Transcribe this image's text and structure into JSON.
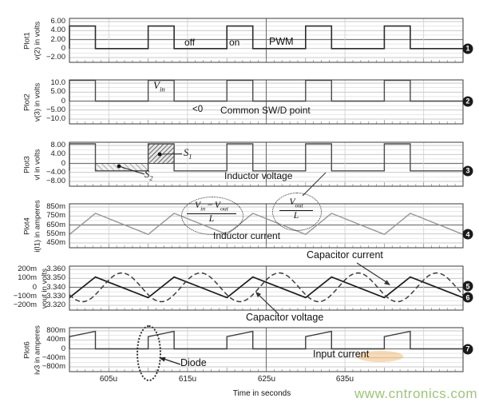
{
  "axis": {
    "title": "Time in seconds",
    "xtick_labels": [
      "605u",
      "615u",
      "625u",
      "635u"
    ]
  },
  "plots": [
    {
      "name": "Plot1",
      "signal": "v(2) in volts",
      "yticks": [
        "6.00",
        "4.00",
        "2.00",
        "0",
        "−2.00"
      ]
    },
    {
      "name": "Plot2",
      "signal": "v(3) in volts",
      "yticks": [
        "10.0",
        "5.00",
        "0",
        "−5.00",
        "−10.0"
      ]
    },
    {
      "name": "Plot3",
      "signal": "vl in volts",
      "yticks": [
        "8.00",
        "4.00",
        "0",
        "−4.00",
        "−8.00"
      ]
    },
    {
      "name": "Plot4",
      "signal": "i(l1) in amperes",
      "yticks": [
        "850m",
        "750m",
        "650m",
        "550m",
        "450m"
      ]
    },
    {
      "name": "",
      "signal": "vout in volts",
      "yticks": [
        "200m",
        "100m",
        "0",
        "−100m",
        "−200m"
      ],
      "yticks_right": [
        "3.360",
        "3.350",
        "3.340",
        "3.330",
        "3.320"
      ]
    },
    {
      "name": "Plot6",
      "signal": "iv3 in amperes",
      "yticks": [
        "800m",
        "400m",
        "0",
        "−400m",
        "−800m"
      ]
    }
  ],
  "annotations": {
    "off": "off",
    "on": "on",
    "pwm": "PWM",
    "vin": {
      "base": "V",
      "sub": "in"
    },
    "lt0": "<0",
    "common": "Common SW/D point",
    "s1": {
      "base": "S",
      "sub": "1"
    },
    "s2": {
      "base": "S",
      "sub": "2"
    },
    "inductor_voltage": "Inductor voltage",
    "inductor_current": "Inductor current",
    "capacitor_current": "Capacitor current",
    "capacitor_voltage": "Capacitor voltage",
    "input_current": "Input current",
    "diode": "Diode",
    "frac1": {
      "v1": "V",
      "s1": "in",
      "minus": "−",
      "v2": "V",
      "s2": "out",
      "den": "L"
    },
    "frac2": {
      "v": "V",
      "s": "out",
      "den": "L"
    }
  },
  "markers": [
    "1",
    "2",
    "3",
    "4",
    "5",
    "6",
    "7"
  ],
  "watermark": "www.cntronics.com",
  "chart_data": [
    {
      "plot": "Plot1",
      "type": "line",
      "signal": "v(2)",
      "unit": "volts",
      "xlim_us": [
        600,
        650
      ],
      "ylim": [
        -2,
        6
      ],
      "waveform": "square",
      "high": 5,
      "low": 0,
      "on_intervals_us": [
        [
          600,
          603.3
        ],
        [
          610,
          613.3
        ],
        [
          620,
          623.3
        ],
        [
          630,
          633.3
        ],
        [
          640,
          643.3
        ]
      ],
      "labels": [
        "off",
        "on",
        "PWM"
      ]
    },
    {
      "plot": "Plot2",
      "type": "line",
      "signal": "v(3)",
      "unit": "volts",
      "ylim": [
        -10,
        10
      ],
      "waveform": "square",
      "high": 11.5,
      "low": 0,
      "labels": [
        "Vin",
        "<0",
        "Common SW/D point"
      ]
    },
    {
      "plot": "Plot3",
      "type": "line",
      "signal": "vl",
      "unit": "volts",
      "ylim": [
        -8,
        8
      ],
      "waveform": "square",
      "high": 8.7,
      "low": -3.3,
      "shaded": [
        {
          "name": "S1",
          "interval_us": [
            610,
            613.3
          ],
          "from": 0,
          "to": 8.7
        },
        {
          "name": "S2",
          "interval_us": [
            603.3,
            610
          ],
          "from": -3.3,
          "to": 0
        }
      ],
      "labels": [
        "Inductor voltage"
      ]
    },
    {
      "plot": "Plot4",
      "type": "line",
      "signal": "i(l1)",
      "unit": "amperes",
      "ylim": [
        0.45,
        0.85
      ],
      "waveform": "triangle",
      "valley": 0.545,
      "peak": 0.78,
      "valleys_at_us": [
        600,
        610,
        620,
        630,
        640,
        650
      ],
      "peaks_at_us": [
        603.3,
        613.3,
        623.3,
        633.3,
        643.3
      ],
      "labels": [
        "Inductor current",
        "(Vin − Vout)/L",
        "Vout/L"
      ]
    },
    {
      "plot": "Plot5",
      "type": "line",
      "series": [
        {
          "name": "Capacitor current",
          "unit": "amperes",
          "style": "solid",
          "ylim": [
            -0.2,
            0.2
          ],
          "waveform": "triangle",
          "valley": -0.115,
          "peak": 0.115
        },
        {
          "name": "Capacitor voltage",
          "unit": "volts",
          "style": "dashed",
          "axis": "right",
          "ylim": [
            3.32,
            3.36
          ],
          "mean": 3.34,
          "amplitude": 0.016,
          "waveform": "smooth",
          "min_at_us": 601.65,
          "period_us": 10
        }
      ]
    },
    {
      "plot": "Plot6",
      "type": "line",
      "signal": "iv3",
      "unit": "amperes",
      "ylim": [
        -0.8,
        0.8
      ],
      "waveform": "gated-ramp",
      "ramp_start": 0.545,
      "ramp_end": 0.78,
      "off_value": 0,
      "labels": [
        "Diode",
        "Input current"
      ]
    }
  ]
}
